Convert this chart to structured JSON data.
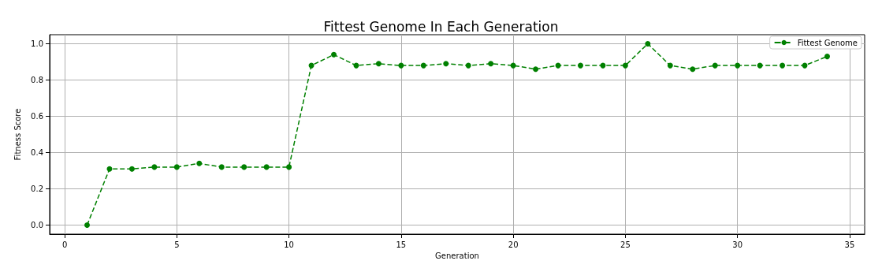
{
  "chart_data": {
    "type": "line",
    "title": "Fittest Genome In Each Generation",
    "xlabel": "Generation",
    "ylabel": "Fitness Score",
    "x": [
      1,
      2,
      3,
      4,
      5,
      6,
      7,
      8,
      9,
      10,
      11,
      12,
      13,
      14,
      15,
      16,
      17,
      18,
      19,
      20,
      21,
      22,
      23,
      24,
      25,
      26,
      27,
      28,
      29,
      30,
      31,
      32,
      33,
      34
    ],
    "series": [
      {
        "name": "Fittest Genome",
        "color": "#008000",
        "values": [
          0,
          0.31,
          0.31,
          0.32,
          0.32,
          0.34,
          0.32,
          0.32,
          0.32,
          0.32,
          0.88,
          0.94,
          0.88,
          0.89,
          0.88,
          0.88,
          0.89,
          0.88,
          0.89,
          0.88,
          0.86,
          0.88,
          0.88,
          0.88,
          0.88,
          1.0,
          0.88,
          0.86,
          0.88,
          0.88,
          0.88,
          0.88,
          0.88,
          0.93
        ]
      }
    ],
    "xlim": [
      -0.67,
      35.67
    ],
    "xticks": [
      0,
      5,
      10,
      15,
      20,
      25,
      30,
      35
    ],
    "ylim": [
      -0.05,
      1.05
    ],
    "yticks": [
      {
        "value": 0,
        "label": "0.0"
      },
      {
        "value": 0.2,
        "label": "0.2"
      },
      {
        "value": 0.4,
        "label": "0.4"
      },
      {
        "value": 0.6,
        "label": "0.6"
      },
      {
        "value": 0.8,
        "label": "0.8"
      },
      {
        "value": 1,
        "label": "1.0"
      }
    ],
    "grid": true,
    "legend": "top right",
    "marker": "circle",
    "line_style": "dashed"
  }
}
